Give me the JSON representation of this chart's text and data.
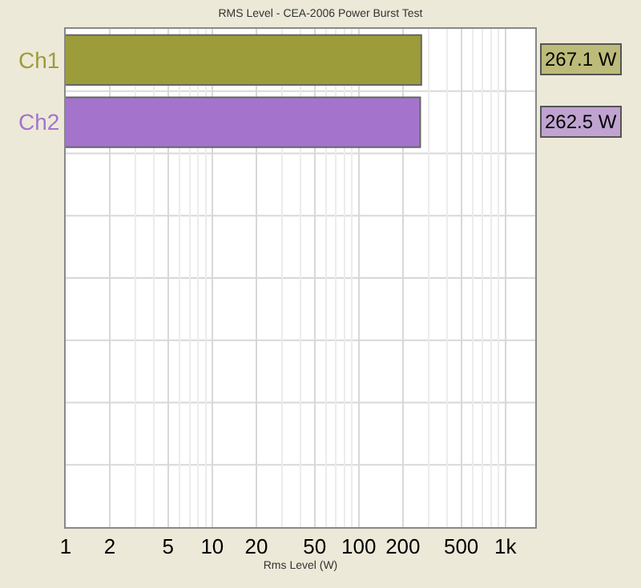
{
  "chart_data": {
    "type": "bar",
    "orientation": "horizontal",
    "title": "RMS Level - CEA-2006 Power Burst Test",
    "xlabel": "Rms Level (W)",
    "categories": [
      "Ch1",
      "Ch2",
      null,
      null,
      null,
      null,
      null,
      null
    ],
    "values": [
      267.1,
      262.5,
      null,
      null,
      null,
      null,
      null,
      null
    ],
    "colors": [
      "#9c9c3a",
      "#a474cc",
      null,
      null,
      null,
      null,
      null,
      null
    ],
    "value_labels": [
      "267.1 W",
      "262.5 W",
      null,
      null,
      null,
      null,
      null,
      null
    ],
    "log": "x",
    "xlim": [
      1,
      1600
    ],
    "xticks": [
      1,
      2,
      5,
      10,
      20,
      50,
      100,
      200,
      500,
      {
        "value": 1000,
        "label": "1k"
      }
    ],
    "grid": true,
    "legend": false
  }
}
